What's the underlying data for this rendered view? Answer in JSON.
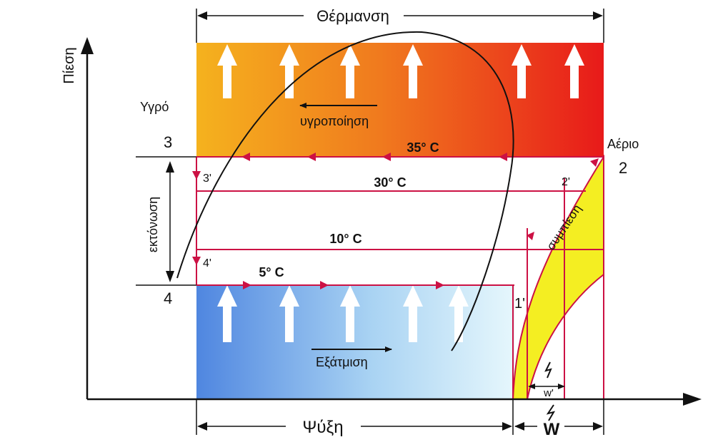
{
  "labels": {
    "heating": "Θέρμανση",
    "cooling": "Ψύξη",
    "pressure_axis": "Πίεση",
    "liquid": "Υγρό",
    "gas": "Αέριο",
    "condensation": "υγροποίηση",
    "evaporation": "Εξάτμιση",
    "expansion": "εκτόνωση",
    "compression": "συμπίεση",
    "work": "W",
    "work_partial": "w'"
  },
  "points": {
    "p3": "3",
    "p4": "4",
    "p2": "2",
    "p3p": "3'",
    "p4p": "4'",
    "p2p": "2'",
    "p1p": "1'"
  },
  "temperatures": {
    "t35": "35° C",
    "t30": "30° C",
    "t10": "10° C",
    "t5": "5° C"
  },
  "colors": {
    "hot_start": "#f5b21e",
    "hot_end": "#e81a1a",
    "cold_start": "#4f86e0",
    "cold_end": "#e6f7fc",
    "line_red": "#cc1144",
    "compression_fill": "#f4ee22",
    "axis": "#111111"
  }
}
